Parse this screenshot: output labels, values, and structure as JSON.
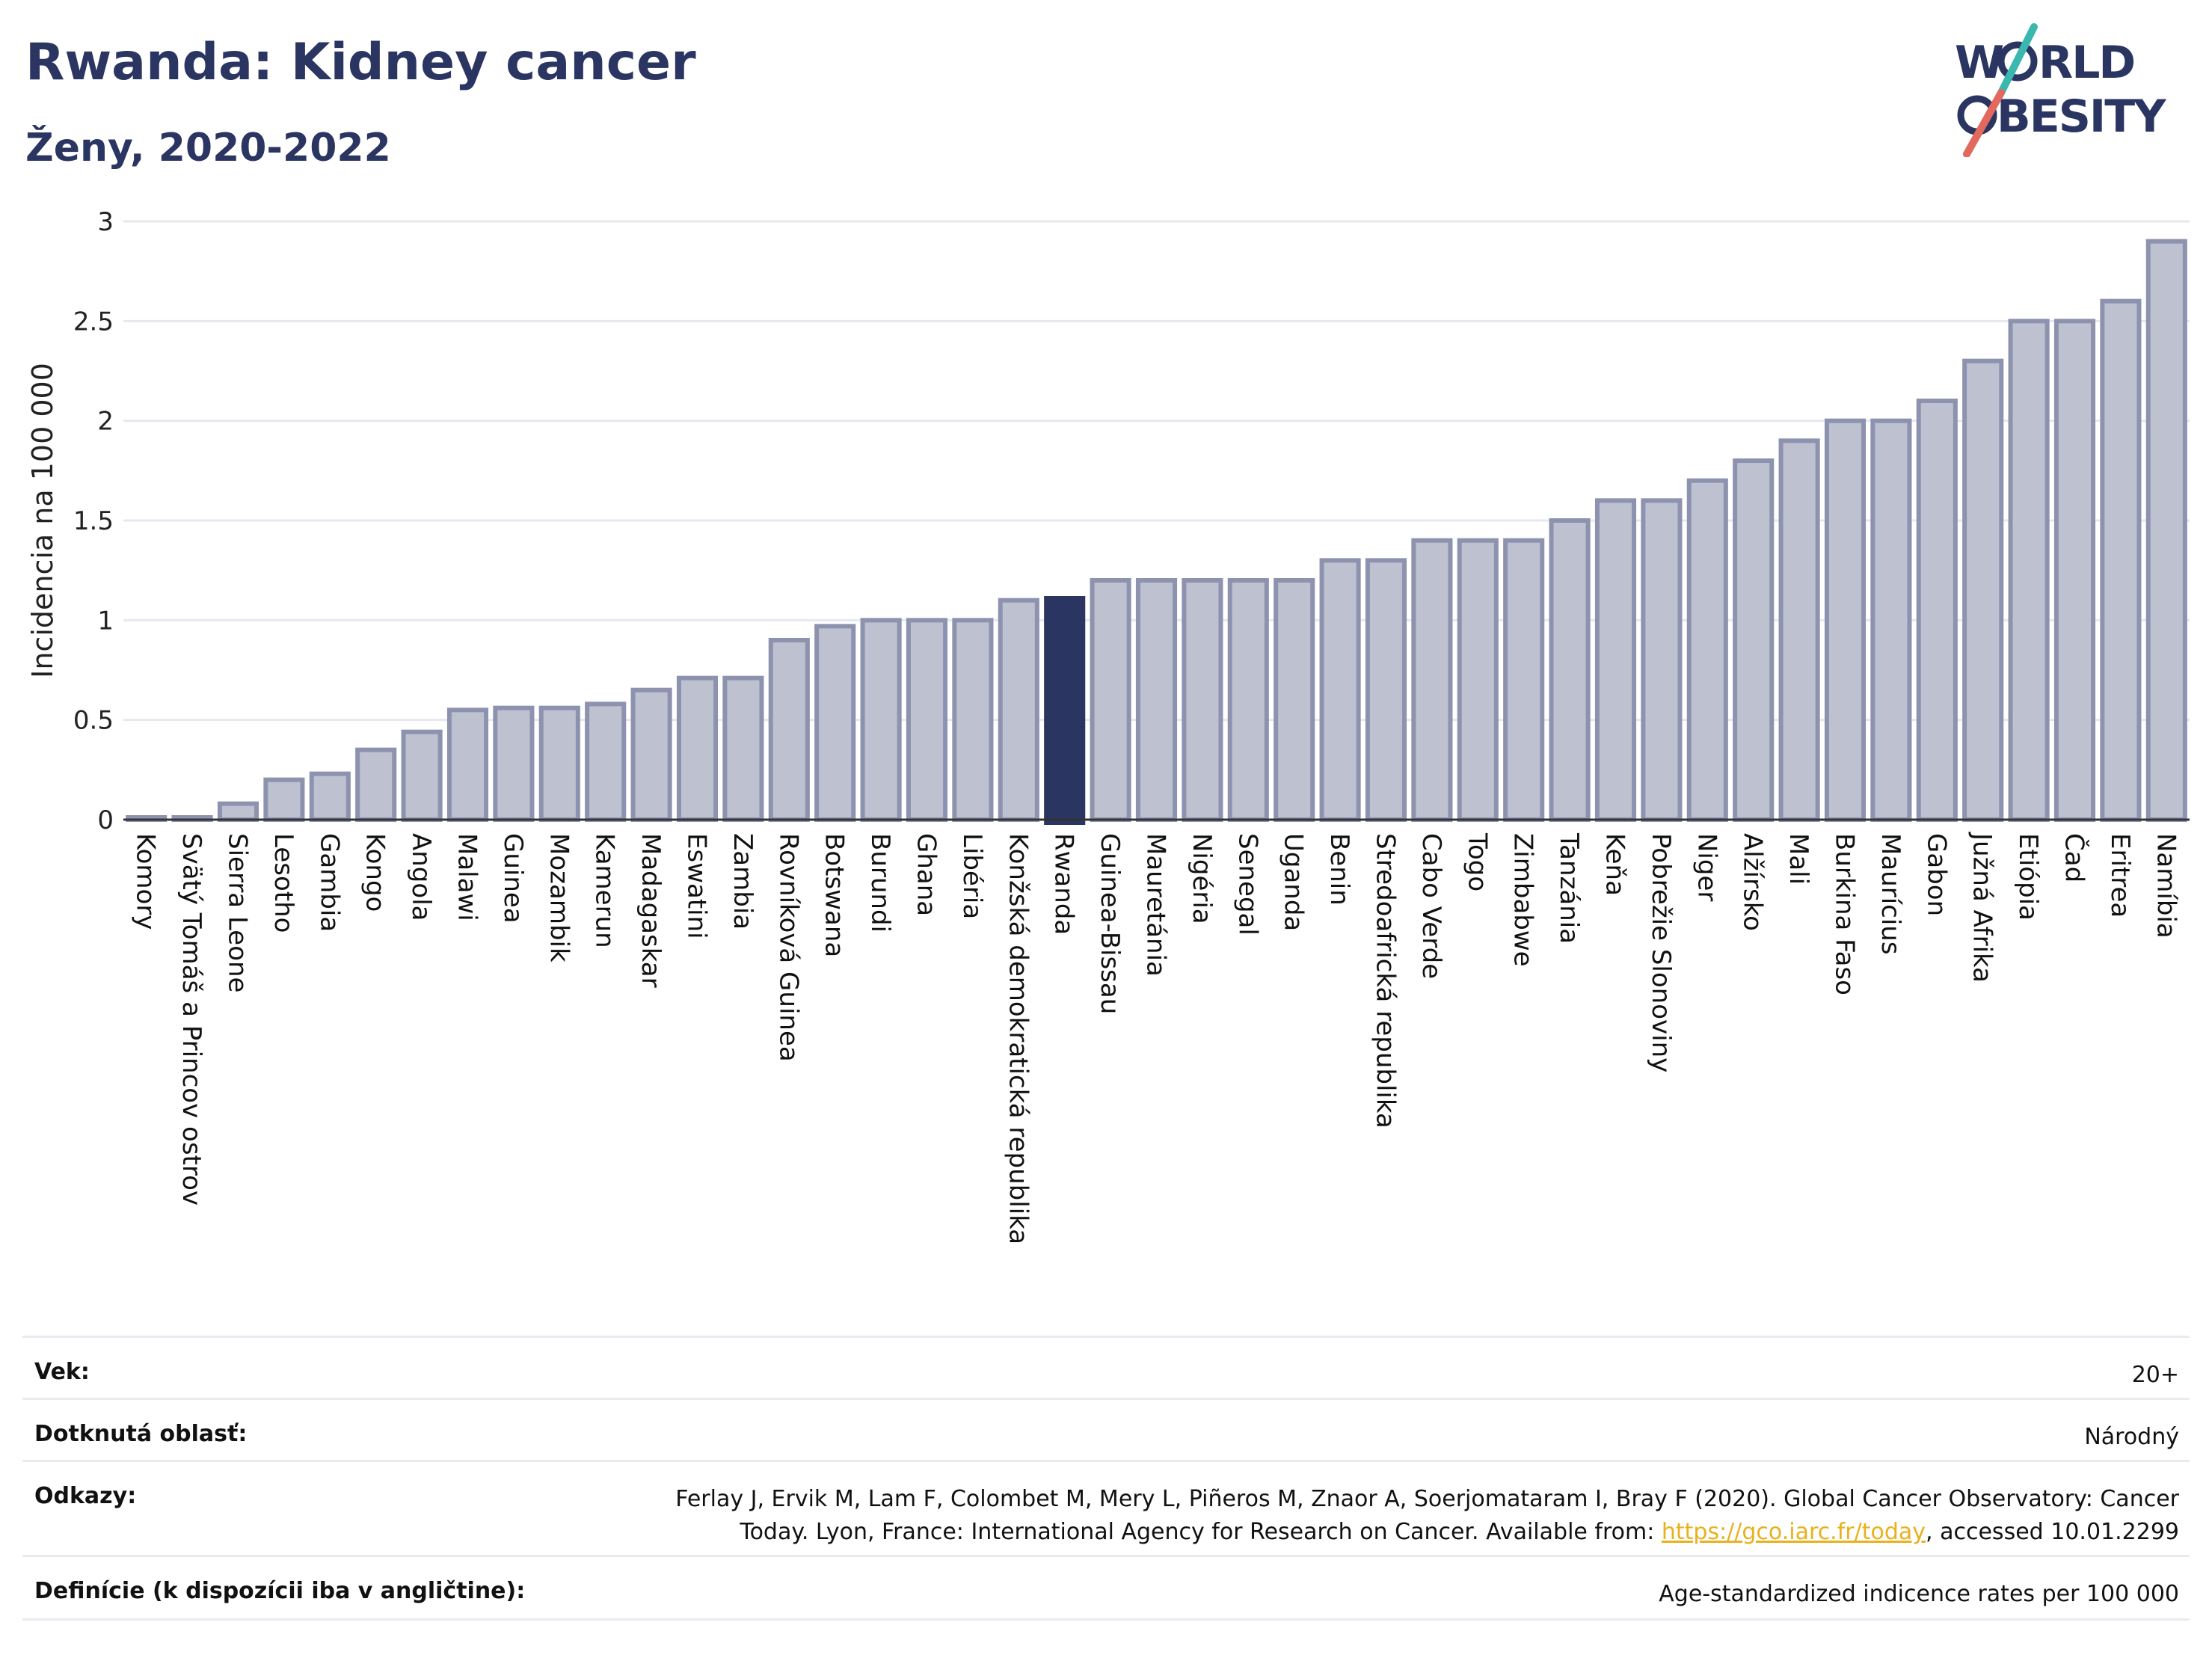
{
  "header": {
    "title": "Rwanda: Kidney cancer",
    "subtitle": "Ženy, 2020-2022"
  },
  "logo": {
    "line1": "W",
    "line1b": "RLD",
    "line2": "BESITY",
    "name": "WORLD OBESITY"
  },
  "colors": {
    "bar": "#bdc1d0",
    "bar_stroke": "#8d93af",
    "highlight": "#2b3562",
    "title": "#2b3562"
  },
  "chart_data": {
    "type": "bar",
    "ylabel": "Incidencia na 100 000",
    "ylim": [
      0,
      3
    ],
    "yticks": [
      "0",
      "0.5",
      "1",
      "1.5",
      "2",
      "2.5",
      "3"
    ],
    "highlight": "Rwanda",
    "categories": [
      "Komory",
      "Svätý Tomáš a Princov ostrov",
      "Sierra Leone",
      "Lesotho",
      "Gambia",
      "Kongo",
      "Angola",
      "Malawi",
      "Guinea",
      "Mozambik",
      "Kamerun",
      "Madagaskar",
      "Eswatini",
      "Zambia",
      "Rovníková Guinea",
      "Botswana",
      "Burundi",
      "Ghana",
      "Libéria",
      "Konžská demokratická republika",
      "Rwanda",
      "Guinea-Bissau",
      "Mauretánia",
      "Nigéria",
      "Senegal",
      "Uganda",
      "Benin",
      "Stredoafrická republika",
      "Cabo Verde",
      "Togo",
      "Zimbabwe",
      "Tanzánia",
      "Keňa",
      "Pobrežie Slonoviny",
      "Niger",
      "Alžírsko",
      "Mali",
      "Burkina Faso",
      "Maurícius",
      "Gabon",
      "Južná Afrika",
      "Etiópia",
      "Čad",
      "Eritrea",
      "Namíbia"
    ],
    "values": [
      0.01,
      0.01,
      0.08,
      0.2,
      0.23,
      0.35,
      0.44,
      0.55,
      0.56,
      0.56,
      0.58,
      0.65,
      0.71,
      0.71,
      0.9,
      0.97,
      1.0,
      1.0,
      1.0,
      1.1,
      1.11,
      1.2,
      1.2,
      1.2,
      1.2,
      1.2,
      1.3,
      1.3,
      1.4,
      1.4,
      1.4,
      1.5,
      1.6,
      1.6,
      1.7,
      1.8,
      1.9,
      2.0,
      2.0,
      2.1,
      2.3,
      2.5,
      2.5,
      2.6,
      2.9
    ]
  },
  "info": {
    "age_label": "Vek:",
    "age_value": "20+",
    "area_label": "Dotknutá oblasť:",
    "area_value": "Národný",
    "refs_label": "Odkazy:",
    "refs_line1": "Ferlay J, Ervik M, Lam F, Colombet M, Mery L, Piñeros M, Znaor A, Soerjomataram I, Bray F (2020). Global Cancer Observatory: Cancer",
    "refs_line2_pre": "Today. Lyon, France: International Agency for Research on Cancer. Available from: ",
    "refs_link": "https://gco.iarc.fr/today",
    "refs_line2_post": ", accessed 10.01.2299",
    "def_label": "Definície (k dispozícii iba v angličtine):",
    "def_value": "Age-standardized indicence rates per 100 000"
  }
}
